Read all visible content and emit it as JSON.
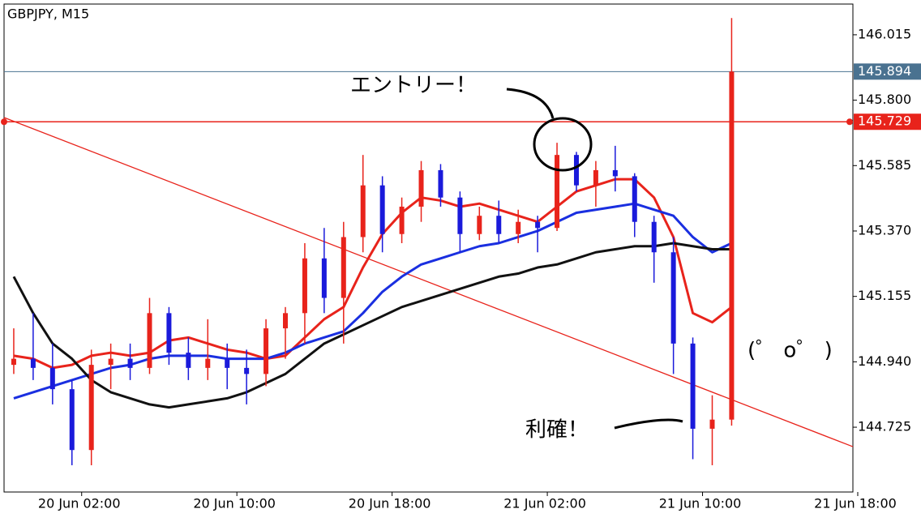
{
  "chart_data": {
    "type": "candlestick",
    "title": "GBPJPY, M15",
    "up_color": "#e8231b",
    "down_color": "#1a1adb",
    "x": [
      "19 Jun 22:00",
      "19 Jun 23:00",
      "20 Jun 00:00",
      "20 Jun 01:00",
      "20 Jun 02:00",
      "20 Jun 03:00",
      "20 Jun 04:00",
      "20 Jun 05:00",
      "20 Jun 06:00",
      "20 Jun 07:00",
      "20 Jun 08:00",
      "20 Jun 09:00",
      "20 Jun 10:00",
      "20 Jun 11:00",
      "20 Jun 12:00",
      "20 Jun 13:00",
      "20 Jun 14:00",
      "20 Jun 15:00",
      "20 Jun 16:00",
      "20 Jun 17:00",
      "20 Jun 18:00",
      "20 Jun 19:00",
      "20 Jun 20:00",
      "20 Jun 21:00",
      "20 Jun 22:00",
      "20 Jun 23:00",
      "21 Jun 00:00",
      "21 Jun 01:00",
      "21 Jun 02:00",
      "21 Jun 03:00",
      "21 Jun 04:00",
      "21 Jun 05:00",
      "21 Jun 06:00",
      "21 Jun 07:00",
      "21 Jun 08:00",
      "21 Jun 09:00",
      "21 Jun 10:00",
      "21 Jun 11:00"
    ],
    "open": [
      144.93,
      144.95,
      144.92,
      144.85,
      144.65,
      144.93,
      144.95,
      144.92,
      145.1,
      144.97,
      144.92,
      144.95,
      144.92,
      144.9,
      145.05,
      145.1,
      145.28,
      145.15,
      145.35,
      145.52,
      145.36,
      145.45,
      145.57,
      145.48,
      145.36,
      145.42,
      145.36,
      145.4,
      145.38,
      145.62,
      145.52,
      145.57,
      145.55,
      145.4,
      145.3,
      145.0,
      144.72,
      144.75
    ],
    "high": [
      145.05,
      145.1,
      145.0,
      144.88,
      144.98,
      145.0,
      145.0,
      145.15,
      145.12,
      145.02,
      145.08,
      145.0,
      144.98,
      145.08,
      145.12,
      145.33,
      145.38,
      145.4,
      145.62,
      145.55,
      145.48,
      145.6,
      145.59,
      145.5,
      145.45,
      145.47,
      145.44,
      145.42,
      145.66,
      145.63,
      145.6,
      145.65,
      145.56,
      145.42,
      145.35,
      145.02,
      144.83,
      146.07
    ],
    "low": [
      144.9,
      144.88,
      144.8,
      144.6,
      144.6,
      144.85,
      144.88,
      144.9,
      144.93,
      144.88,
      144.88,
      144.85,
      144.8,
      144.86,
      144.95,
      145.0,
      145.1,
      145.0,
      145.3,
      145.3,
      145.33,
      145.4,
      145.45,
      145.3,
      145.34,
      145.33,
      145.33,
      145.3,
      145.37,
      145.5,
      145.45,
      145.5,
      145.35,
      145.2,
      144.9,
      144.62,
      144.6,
      144.73
    ],
    "close": [
      144.95,
      144.92,
      144.85,
      144.65,
      144.93,
      144.95,
      144.92,
      145.1,
      144.97,
      144.92,
      144.95,
      144.92,
      144.9,
      145.05,
      145.1,
      145.28,
      145.15,
      145.35,
      145.52,
      145.36,
      145.45,
      145.57,
      145.48,
      145.36,
      145.42,
      145.36,
      145.4,
      145.38,
      145.62,
      145.52,
      145.57,
      145.55,
      145.4,
      145.3,
      145.0,
      144.72,
      144.75,
      145.894
    ],
    "series": [
      {
        "color": "#e8231b",
        "values": [
          144.96,
          144.95,
          144.92,
          144.93,
          144.96,
          144.97,
          144.96,
          144.97,
          145.01,
          145.02,
          145.0,
          144.98,
          144.97,
          144.95,
          144.96,
          145.02,
          145.08,
          145.12,
          145.25,
          145.36,
          145.43,
          145.48,
          145.47,
          145.45,
          145.46,
          145.44,
          145.42,
          145.4,
          145.45,
          145.5,
          145.52,
          145.54,
          145.54,
          145.48,
          145.35,
          145.1,
          145.07,
          145.12
        ]
      },
      {
        "color": "#1a2fe0",
        "values": [
          144.82,
          144.84,
          144.86,
          144.88,
          144.9,
          144.92,
          144.93,
          144.95,
          144.96,
          144.96,
          144.96,
          144.95,
          144.95,
          144.95,
          144.97,
          145.0,
          145.02,
          145.04,
          145.1,
          145.17,
          145.22,
          145.26,
          145.28,
          145.3,
          145.32,
          145.33,
          145.35,
          145.37,
          145.4,
          145.43,
          145.44,
          145.45,
          145.46,
          145.44,
          145.42,
          145.35,
          145.3,
          145.33
        ]
      },
      {
        "color": "#111111",
        "values": [
          145.22,
          145.1,
          145.0,
          144.95,
          144.88,
          144.84,
          144.82,
          144.8,
          144.79,
          144.8,
          144.81,
          144.82,
          144.84,
          144.87,
          144.9,
          144.95,
          145.0,
          145.03,
          145.06,
          145.09,
          145.12,
          145.14,
          145.16,
          145.18,
          145.2,
          145.22,
          145.23,
          145.25,
          145.26,
          145.28,
          145.3,
          145.31,
          145.32,
          145.32,
          145.33,
          145.32,
          145.31,
          145.31
        ]
      }
    ],
    "levels": [
      {
        "value": 145.894,
        "color": "#4a7290"
      },
      {
        "value": 145.729,
        "color": "#e8231b"
      }
    ],
    "trendline": {
      "x": [
        "19 Jun 22:00",
        "21 Jun 17:45"
      ],
      "values": [
        145.743,
        144.661
      ],
      "color": "#e8231b"
    },
    "xlim": [
      "19 Jun 22:00",
      "21 Jun 17:45"
    ],
    "xticks": [
      "20 Jun 02:00",
      "20 Jun 10:00",
      "20 Jun 18:00",
      "21 Jun 02:00",
      "21 Jun 10:00",
      "21 Jun 18:00"
    ],
    "ylim": [
      144.512,
      146.116
    ],
    "yticks": [
      146.015,
      {
        "value": 145.8,
        "label": "145.800"
      },
      145.585,
      {
        "value": 145.37,
        "label": "145.370"
      },
      145.155,
      {
        "value": 144.94,
        "label": "144.940"
      },
      144.725
    ],
    "annotations": [
      "エントリー！",
      "利確！",
      "(゜ o゜ )"
    ]
  }
}
